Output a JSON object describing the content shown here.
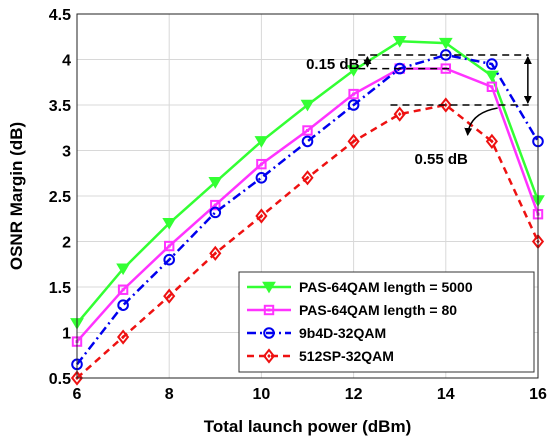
{
  "chart_data": {
    "type": "line",
    "title": "",
    "xlabel": "Total launch power (dBm)",
    "ylabel": "OSNR Margin (dB)",
    "xlim": [
      6,
      16
    ],
    "ylim": [
      0.5,
      4.5
    ],
    "xticks": [
      6,
      8,
      10,
      12,
      14,
      16
    ],
    "yticks": [
      0.5,
      1,
      1.5,
      2,
      2.5,
      3,
      3.5,
      4,
      4.5
    ],
    "grid": true,
    "legend_position": "bottom-right",
    "x": [
      6,
      7,
      8,
      9,
      10,
      11,
      12,
      13,
      14,
      15,
      16
    ],
    "series": [
      {
        "name": "PAS-64QAM length = 5000",
        "color": "#33ff33",
        "marker": "triangle-down",
        "dash": "solid",
        "values": [
          1.1,
          1.7,
          2.2,
          2.65,
          3.1,
          3.5,
          3.88,
          4.2,
          4.18,
          3.82,
          2.45
        ]
      },
      {
        "name": "PAS-64QAM length = 80",
        "color": "#ff33ff",
        "marker": "square",
        "dash": "solid",
        "values": [
          0.9,
          1.47,
          1.95,
          2.4,
          2.85,
          3.22,
          3.62,
          3.9,
          3.9,
          3.7,
          2.3
        ]
      },
      {
        "name": "9b4D-32QAM",
        "color": "#0000ee",
        "marker": "circle",
        "dash": "dashdot",
        "values": [
          0.65,
          1.3,
          1.8,
          2.32,
          2.7,
          3.1,
          3.5,
          3.9,
          4.05,
          3.95,
          3.1
        ]
      },
      {
        "name": "512SP-32QAM",
        "color": "#ee1111",
        "marker": "diamond",
        "dash": "dashed",
        "values": [
          0.5,
          0.95,
          1.4,
          1.87,
          2.28,
          2.7,
          3.1,
          3.4,
          3.5,
          3.1,
          2.0
        ]
      }
    ],
    "annotations": [
      {
        "text": "0.15 dB",
        "from": 4.05,
        "to": 3.9
      },
      {
        "text": "0.55 dB",
        "from": 4.05,
        "to": 3.5
      }
    ],
    "reference_lines": [
      4.05,
      3.9,
      3.5
    ]
  }
}
